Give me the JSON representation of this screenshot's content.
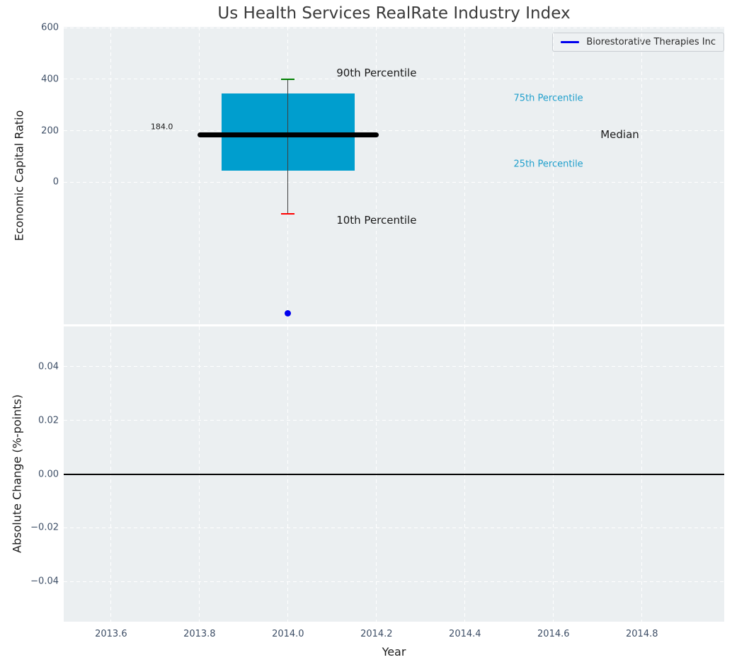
{
  "title": "Us Health Services RealRate Industry Index",
  "legend": {
    "label": "Biorestorative Therapies Inc",
    "line_color": "#0000ee"
  },
  "colors": {
    "figure_bg": "#ffffff",
    "axes_bg": "#ebeff1",
    "grid": "#ffffff",
    "tick_label": "#3d4e66",
    "axis_label": "#1a1a1a",
    "title": "#3a3a3a",
    "box_fill": "#009ece",
    "median_line": "#000000",
    "whisker": "#404040",
    "cap_upper": "#008000",
    "cap_lower": "#ff0000",
    "company_dot": "#0000ee",
    "percentile_text": "#1f9fcc",
    "zero_line": "#000000",
    "legend_bg": "#eef1f3",
    "legend_border": "#c8cdd2"
  },
  "chart_data": [
    {
      "type": "boxplot",
      "name": "economic-capital-ratio-panel",
      "ylabel": "Economic Capital Ratio",
      "xlim": [
        2013.493,
        2014.986
      ],
      "ylim": [
        -554,
        604
      ],
      "yticks": [
        600,
        400,
        200,
        0
      ],
      "ytick_labels": [
        "600",
        "400",
        "200",
        "0"
      ],
      "grid_xticks": [
        2013.6,
        2013.8,
        2014.0,
        2014.2,
        2014.4,
        2014.6,
        2014.8
      ],
      "grid": true,
      "legend_position": "upper right",
      "box": {
        "center_x": 2014.0,
        "p90": 400,
        "p75": 345,
        "median": 184,
        "p25": 44,
        "p10": -124,
        "median_label": "184.0",
        "box_halfwidth": 0.15,
        "median_halfwidth": 0.205,
        "cap_halfwidth": 0.015
      },
      "company_point": {
        "label": "Biorestorative Therapies Inc",
        "x": 2014.0,
        "y": -510
      },
      "annotations": [
        {
          "text": "90th Percentile",
          "x": 2014.2,
          "y": 425,
          "align": "center",
          "style": "large-black"
        },
        {
          "text": "10th Percentile",
          "x": 2014.2,
          "y": -149,
          "align": "center",
          "style": "large-black"
        },
        {
          "text": "Median",
          "x": 2014.75,
          "y": 184,
          "align": "center",
          "style": "large-black"
        },
        {
          "text": "75th Percentile",
          "x": 2014.51,
          "y": 325,
          "align": "left",
          "style": "small-cyan"
        },
        {
          "text": "25th Percentile",
          "x": 2014.51,
          "y": 69,
          "align": "left",
          "style": "small-cyan"
        },
        {
          "text": "184.0",
          "x": 2013.74,
          "y": 215,
          "align": "right",
          "style": "tiny-black"
        }
      ]
    },
    {
      "type": "line",
      "name": "absolute-change-panel",
      "ylabel": "Absolute Change (%-points)",
      "xlabel": "Year",
      "xlim": [
        2013.493,
        2014.986
      ],
      "ylim": [
        -0.055,
        0.055
      ],
      "yticks": [
        0.04,
        0.02,
        0,
        -0.02,
        -0.04
      ],
      "ytick_labels": [
        "0.04",
        "0.02",
        "0.00",
        "−0.02",
        "−0.04"
      ],
      "xticks": [
        2013.6,
        2013.8,
        2014.0,
        2014.2,
        2014.4,
        2014.6,
        2014.8
      ],
      "xtick_labels": [
        "2013.6",
        "2013.8",
        "2014.0",
        "2014.2",
        "2014.4",
        "2014.6",
        "2014.8"
      ],
      "zero_line_y": 0.0,
      "grid": true,
      "series": []
    }
  ]
}
